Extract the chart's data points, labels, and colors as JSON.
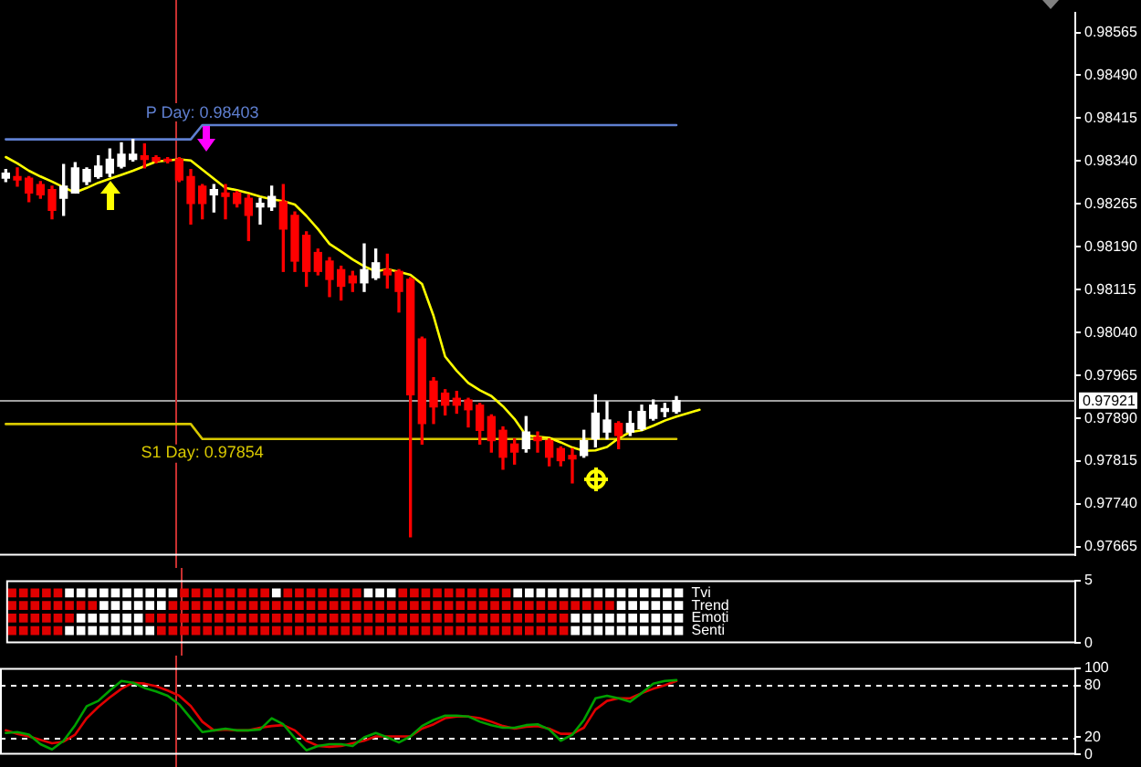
{
  "chart_data": [
    {
      "type": "candlestick",
      "categories": [
        null,
        null,
        null,
        null,
        null,
        null,
        null,
        null,
        null,
        null,
        null,
        null,
        null,
        null,
        null,
        null,
        null,
        null,
        null,
        null,
        null,
        null,
        null,
        null,
        null,
        null,
        null,
        null,
        null,
        null,
        null,
        null,
        null,
        null,
        null,
        null,
        null,
        null,
        null,
        null,
        null,
        null,
        null,
        null,
        null,
        null,
        null,
        null,
        null,
        null,
        null,
        null,
        null,
        null,
        null,
        null,
        null,
        null,
        null,
        null,
        null,
        null,
        null,
        null,
        null,
        null,
        null,
        null,
        null,
        null,
        null,
        null,
        null,
        null,
        null,
        null,
        null,
        null,
        null,
        null,
        null,
        null,
        null,
        null,
        null,
        null,
        null,
        null,
        null,
        null,
        null,
        null,
        null
      ],
      "ohlc": [
        [
          0.9831,
          0.98325,
          0.98304,
          0.98319
        ],
        [
          0.98313,
          0.98328,
          0.98296,
          0.98307
        ],
        [
          0.9831,
          0.98313,
          0.98269,
          0.98284
        ],
        [
          0.98299,
          0.98304,
          0.98275,
          0.98281
        ],
        [
          0.9829,
          0.98296,
          0.98239,
          0.98254
        ],
        [
          0.98275,
          0.98334,
          0.98245,
          0.98296
        ],
        [
          0.98284,
          0.98337,
          0.98284,
          0.98328
        ],
        [
          0.98304,
          0.98328,
          0.98299,
          0.98325
        ],
        [
          0.98313,
          0.98349,
          0.9831,
          0.98331
        ],
        [
          0.98319,
          0.98361,
          0.98313,
          0.98343
        ],
        [
          0.98331,
          0.98372,
          0.98328,
          0.98352
        ],
        [
          0.98343,
          0.98378,
          0.9834,
          0.98352
        ],
        [
          0.98349,
          0.9837,
          0.98328,
          0.98343
        ],
        [
          0.98346,
          0.98349,
          0.98337,
          0.9834
        ],
        [
          0.98343,
          0.98346,
          0.98337,
          0.9834
        ],
        [
          0.98343,
          0.98346,
          0.98304,
          0.98307
        ],
        [
          0.98313,
          0.98325,
          0.9823,
          0.98266
        ],
        [
          0.98296,
          0.98299,
          0.98239,
          0.98266
        ],
        [
          0.98281,
          0.98299,
          0.98251,
          0.9829
        ],
        [
          0.98284,
          0.98299,
          0.98239,
          0.98278
        ],
        [
          0.98284,
          0.98287,
          0.9826,
          0.98266
        ],
        [
          0.98275,
          0.98281,
          0.98201,
          0.98245
        ],
        [
          0.9826,
          0.98275,
          0.9823,
          0.98266
        ],
        [
          0.9826,
          0.98296,
          0.98254,
          0.98278
        ],
        [
          0.98269,
          0.98299,
          0.98147,
          0.98221
        ],
        [
          0.98245,
          0.98251,
          0.98147,
          0.98165
        ],
        [
          0.9821,
          0.98216,
          0.98121,
          0.98147
        ],
        [
          0.9818,
          0.98186,
          0.98141,
          0.98147
        ],
        [
          0.98165,
          0.98171,
          0.98103,
          0.98133
        ],
        [
          0.9815,
          0.98156,
          0.98097,
          0.98121
        ],
        [
          0.98139,
          0.98147,
          0.98112,
          0.98127
        ],
        [
          0.98127,
          0.98195,
          0.98112,
          0.9815
        ],
        [
          0.98136,
          0.98186,
          0.98133,
          0.98162
        ],
        [
          0.9815,
          0.98177,
          0.98118,
          0.98141
        ],
        [
          0.98147,
          0.9815,
          0.98076,
          0.98112
        ],
        [
          0.98133,
          0.98136,
          0.97683,
          0.97931
        ],
        [
          0.98029,
          0.98032,
          0.97845,
          0.97881
        ],
        [
          0.97955,
          0.97961,
          0.97881,
          0.9791
        ],
        [
          0.97934,
          0.9794,
          0.97896,
          0.97913
        ],
        [
          0.97925,
          0.97937,
          0.97899,
          0.97913
        ],
        [
          0.97922,
          0.97925,
          0.97875,
          0.97905
        ],
        [
          0.97913,
          0.97916,
          0.97845,
          0.97869
        ],
        [
          0.97893,
          0.97896,
          0.97831,
          0.97851
        ],
        [
          0.97869,
          0.97875,
          0.97801,
          0.97822
        ],
        [
          0.97845,
          0.97854,
          0.9781,
          0.97831
        ],
        [
          0.97837,
          0.97893,
          0.97831,
          0.97866
        ],
        [
          0.97857,
          0.97866,
          0.97831,
          0.97851
        ],
        [
          0.97851,
          0.97854,
          0.97807,
          0.97822
        ],
        [
          0.97837,
          0.9784,
          0.97807,
          0.97816
        ],
        [
          0.97825,
          0.97837,
          0.97777,
          0.97819
        ],
        [
          0.97825,
          0.97869,
          0.97822,
          0.97851
        ],
        [
          0.97854,
          0.97931,
          0.9784,
          0.97899
        ],
        [
          0.97866,
          0.97919,
          0.97854,
          0.97887
        ],
        [
          0.97881,
          0.97884,
          0.97837,
          0.9786
        ],
        [
          0.97866,
          0.97902,
          0.9786,
          0.97881
        ],
        [
          0.97872,
          0.97913,
          0.97869,
          0.97902
        ],
        [
          0.9789,
          0.97922,
          0.97887,
          0.97913
        ],
        [
          0.97902,
          0.97916,
          0.97893,
          0.97907
        ],
        [
          0.97902,
          0.97928,
          0.97899,
          0.97921
        ],
        null,
        null,
        null,
        null,
        null,
        null,
        null,
        null,
        null,
        null,
        null,
        null,
        null,
        null,
        null,
        null,
        null,
        null,
        null,
        null,
        null,
        null,
        null,
        null,
        null,
        null,
        null,
        null,
        null,
        null,
        null,
        null,
        null,
        null
      ],
      "colors": [
        "#ffffff",
        "#ff0000",
        "#ff0000",
        "#ff0000",
        "#ff0000",
        "#ffffff",
        "#ffffff",
        "#ffffff",
        "#ffffff",
        "#ffffff",
        "#ffffff",
        "#ffffff",
        "#ff0000",
        "#ff0000",
        "#ff0000",
        "#ff0000",
        "#ff0000",
        "#ff0000",
        "#ffffff",
        "#ff0000",
        "#ff0000",
        "#ff0000",
        "#ffffff",
        "#ffffff",
        "#ff0000",
        "#ff0000",
        "#ff0000",
        "#ff0000",
        "#ff0000",
        "#ff0000",
        "#ff0000",
        "#ffffff",
        "#ffffff",
        "#ff0000",
        "#ff0000",
        "#ff0000",
        "#ff0000",
        "#ff0000",
        "#ff0000",
        "#ff0000",
        "#ff0000",
        "#ff0000",
        "#ff0000",
        "#ff0000",
        "#ff0000",
        "#ffffff",
        "#ff0000",
        "#ff0000",
        "#ff0000",
        "#ff0000",
        "#ffffff",
        "#ffffff",
        "#ffffff",
        "#ff0000",
        "#ffffff",
        "#ffffff",
        "#ffffff",
        "#ffffff",
        "#ffffff",
        null,
        null,
        null,
        null,
        null,
        null,
        null,
        null,
        null,
        null,
        null,
        null,
        null,
        null,
        null,
        null,
        null,
        null,
        null,
        null,
        null,
        null,
        null,
        null,
        null,
        null,
        null,
        null,
        null,
        null,
        null,
        null,
        null,
        null
      ],
      "series": [
        {
          "type": "line",
          "color": "#ffff00",
          "values": [
            0.98347,
            0.98336,
            0.98323,
            0.98313,
            0.98304,
            0.98294,
            0.98285,
            0.98293,
            0.98302,
            0.98309,
            0.98316,
            0.98323,
            0.98331,
            0.98339,
            0.98341,
            0.98343,
            0.98341,
            0.98325,
            0.98309,
            0.98293,
            0.98289,
            0.98284,
            0.98278,
            0.98273,
            0.9827,
            0.98264,
            0.98244,
            0.98221,
            0.98195,
            0.98182,
            0.98168,
            0.98156,
            0.98147,
            0.98151,
            0.98146,
            0.98141,
            0.98125,
            0.98069,
            0.97998,
            0.97973,
            0.97952,
            0.97939,
            0.97929,
            0.97911,
            0.97889,
            0.9786,
            0.97858,
            0.97856,
            0.97848,
            0.97839,
            0.97833,
            0.97834,
            0.9784,
            0.97855,
            0.97866,
            0.97869,
            0.97877,
            0.97886,
            0.97893,
            0.97899,
            0.97905,
            null,
            null,
            null,
            null,
            null,
            null,
            null,
            null,
            null,
            null,
            null,
            null,
            null,
            null,
            null,
            null,
            null,
            null,
            null,
            null,
            null,
            null,
            null,
            null,
            null,
            null,
            null,
            null,
            null,
            null,
            null,
            null
          ]
        },
        {
          "type": "line",
          "name": "P Day: 0.98403",
          "color": "#5f7fd0",
          "values": [
            0.98378,
            0.98378,
            0.98378,
            0.98378,
            0.98378,
            0.98378,
            0.98378,
            0.98378,
            0.98378,
            0.98378,
            0.98378,
            0.98378,
            0.98378,
            0.98378,
            0.98378,
            0.98378,
            0.98378,
            0.98403,
            0.98403,
            0.98403,
            0.98403,
            0.98403,
            0.98403,
            0.98403,
            0.98403,
            0.98403,
            0.98403,
            0.98403,
            0.98403,
            0.98403,
            0.98403,
            0.98403,
            0.98403,
            0.98403,
            0.98403,
            0.98403,
            0.98403,
            0.98403,
            0.98403,
            0.98403,
            0.98403,
            0.98403,
            0.98403,
            0.98403,
            0.98403,
            0.98403,
            0.98403,
            0.98403,
            0.98403,
            0.98403,
            0.98403,
            0.98403,
            0.98403,
            0.98403,
            0.98403,
            0.98403,
            0.98403,
            0.98403,
            0.98403,
            null,
            null,
            null,
            null,
            null,
            null,
            null,
            null,
            null,
            null,
            null,
            null,
            null,
            null,
            null,
            null,
            null,
            null,
            null,
            null,
            null,
            null,
            null,
            null,
            null,
            null,
            null,
            null,
            null,
            null,
            null,
            null,
            null,
            null
          ]
        },
        {
          "type": "line",
          "name": "S1 Day: 0.97854",
          "color": "#d8c800",
          "values": [
            0.9788,
            0.9788,
            0.9788,
            0.9788,
            0.9788,
            0.9788,
            0.9788,
            0.9788,
            0.9788,
            0.9788,
            0.9788,
            0.9788,
            0.9788,
            0.9788,
            0.9788,
            0.9788,
            0.9788,
            0.97854,
            0.97854,
            0.97854,
            0.97854,
            0.97854,
            0.97854,
            0.97854,
            0.97854,
            0.97854,
            0.97854,
            0.97854,
            0.97854,
            0.97854,
            0.97854,
            0.97854,
            0.97854,
            0.97854,
            0.97854,
            0.97854,
            0.97854,
            0.97854,
            0.97854,
            0.97854,
            0.97854,
            0.97854,
            0.97854,
            0.97854,
            0.97854,
            0.97854,
            0.97854,
            0.97854,
            0.97854,
            0.97854,
            0.97854,
            0.97854,
            0.97854,
            0.97854,
            0.97854,
            0.97854,
            0.97854,
            0.97854,
            0.97854,
            null,
            null,
            null,
            null,
            null,
            null,
            null,
            null,
            null,
            null,
            null,
            null,
            null,
            null,
            null,
            null,
            null,
            null,
            null,
            null,
            null,
            null,
            null,
            null,
            null,
            null,
            null,
            null,
            null,
            null,
            null,
            null,
            null,
            null
          ]
        }
      ],
      "ylim": [
        0.9765,
        0.986
      ],
      "yticks": [
        {
          "value": 0.97665,
          "label": "0.97665"
        },
        {
          "value": 0.9774,
          "label": "0.97740"
        },
        {
          "value": 0.97815,
          "label": "0.97815"
        },
        {
          "value": 0.9789,
          "label": "0.97890"
        },
        {
          "value": 0.97965,
          "label": "0.97965"
        },
        {
          "value": 0.9804,
          "label": "0.98040"
        },
        {
          "value": 0.98115,
          "label": "0.98115"
        },
        {
          "value": 0.9819,
          "label": "0.98190"
        },
        {
          "value": 0.98265,
          "label": "0.98265"
        },
        {
          "value": 0.9834,
          "label": "0.98340"
        },
        {
          "value": 0.98415,
          "label": "0.98415"
        },
        {
          "value": 0.9849,
          "label": "0.98490"
        },
        {
          "value": 0.98565,
          "label": "0.98565"
        }
      ],
      "ref_lines": [
        {
          "axis": "y",
          "value": 0.97921,
          "label": "0.97921",
          "color": "#a0a0a0"
        }
      ],
      "grid": false,
      "legend": false,
      "tick_labels": "y",
      "marker": "none"
    },
    {
      "type": "scatter",
      "categories": [
        null,
        null,
        null,
        null,
        null,
        null,
        null,
        null,
        null,
        null,
        null,
        null,
        null,
        null,
        null,
        null,
        null,
        null,
        null,
        null,
        null,
        null,
        null,
        null,
        null,
        null,
        null,
        null,
        null,
        null,
        null,
        null,
        null,
        null,
        null,
        null,
        null,
        null,
        null,
        null,
        null,
        null,
        null,
        null,
        null,
        null,
        null,
        null,
        null,
        null,
        null,
        null,
        null,
        null,
        null,
        null,
        null,
        null,
        null,
        null,
        null,
        null,
        null,
        null,
        null,
        null,
        null,
        null,
        null,
        null,
        null,
        null,
        null,
        null,
        null,
        null,
        null,
        null,
        null,
        null,
        null,
        null,
        null,
        null,
        null,
        null,
        null,
        null,
        null,
        null,
        null,
        null,
        null
      ],
      "series": [
        {
          "name": "Tvi",
          "values": [
            4,
            4,
            4,
            4,
            4,
            4,
            4,
            4,
            4,
            4,
            4,
            4,
            4,
            4,
            4,
            4,
            4,
            4,
            4,
            4,
            4,
            4,
            4,
            4,
            4,
            4,
            4,
            4,
            4,
            4,
            4,
            4,
            4,
            4,
            4,
            4,
            4,
            4,
            4,
            4,
            4,
            4,
            4,
            4,
            4,
            4,
            4,
            4,
            4,
            4,
            4,
            4,
            4,
            4,
            4,
            4,
            4,
            4,
            4,
            null,
            null,
            null,
            null,
            null,
            null,
            null,
            null,
            null,
            null,
            null,
            null,
            null,
            null,
            null,
            null,
            null,
            null,
            null,
            null,
            null,
            null,
            null,
            null,
            null,
            null,
            null,
            null,
            null,
            null,
            null,
            null,
            null,
            null
          ],
          "colors": [
            "#e00000",
            "#e00000",
            "#e00000",
            "#e00000",
            "#e00000",
            "#ffffff",
            "#ffffff",
            "#ffffff",
            "#ffffff",
            "#ffffff",
            "#ffffff",
            "#ffffff",
            "#ffffff",
            "#ffffff",
            "#ffffff",
            "#e00000",
            "#e00000",
            "#e00000",
            "#e00000",
            "#e00000",
            "#e00000",
            "#e00000",
            "#e00000",
            "#ffffff",
            "#e00000",
            "#e00000",
            "#e00000",
            "#e00000",
            "#e00000",
            "#e00000",
            "#e00000",
            "#ffffff",
            "#ffffff",
            "#ffffff",
            "#e00000",
            "#e00000",
            "#e00000",
            "#e00000",
            "#e00000",
            "#e00000",
            "#e00000",
            "#e00000",
            "#e00000",
            "#e00000",
            "#ffffff",
            "#ffffff",
            "#ffffff",
            "#ffffff",
            "#ffffff",
            "#ffffff",
            "#ffffff",
            "#ffffff",
            "#ffffff",
            "#ffffff",
            "#ffffff",
            "#ffffff",
            "#ffffff",
            "#ffffff",
            "#ffffff",
            null,
            null,
            null,
            null,
            null,
            null,
            null,
            null,
            null,
            null,
            null,
            null,
            null,
            null,
            null,
            null,
            null,
            null,
            null,
            null,
            null,
            null,
            null,
            null,
            null,
            null,
            null,
            null,
            null,
            null,
            null,
            null,
            null,
            null
          ]
        },
        {
          "name": "Trend",
          "values": [
            3,
            3,
            3,
            3,
            3,
            3,
            3,
            3,
            3,
            3,
            3,
            3,
            3,
            3,
            3,
            3,
            3,
            3,
            3,
            3,
            3,
            3,
            3,
            3,
            3,
            3,
            3,
            3,
            3,
            3,
            3,
            3,
            3,
            3,
            3,
            3,
            3,
            3,
            3,
            3,
            3,
            3,
            3,
            3,
            3,
            3,
            3,
            3,
            3,
            3,
            3,
            3,
            3,
            3,
            3,
            3,
            3,
            3,
            3,
            null,
            null,
            null,
            null,
            null,
            null,
            null,
            null,
            null,
            null,
            null,
            null,
            null,
            null,
            null,
            null,
            null,
            null,
            null,
            null,
            null,
            null,
            null,
            null,
            null,
            null,
            null,
            null,
            null,
            null,
            null,
            null,
            null,
            null
          ],
          "colors": [
            "#e00000",
            "#e00000",
            "#e00000",
            "#e00000",
            "#e00000",
            "#e00000",
            "#e00000",
            "#e00000",
            "#ffffff",
            "#ffffff",
            "#ffffff",
            "#ffffff",
            "#ffffff",
            "#ffffff",
            "#e00000",
            "#e00000",
            "#e00000",
            "#e00000",
            "#e00000",
            "#e00000",
            "#e00000",
            "#e00000",
            "#e00000",
            "#e00000",
            "#e00000",
            "#e00000",
            "#e00000",
            "#e00000",
            "#e00000",
            "#e00000",
            "#e00000",
            "#e00000",
            "#e00000",
            "#e00000",
            "#e00000",
            "#e00000",
            "#e00000",
            "#e00000",
            "#e00000",
            "#e00000",
            "#e00000",
            "#e00000",
            "#e00000",
            "#e00000",
            "#e00000",
            "#e00000",
            "#e00000",
            "#e00000",
            "#e00000",
            "#e00000",
            "#e00000",
            "#e00000",
            "#e00000",
            "#ffffff",
            "#ffffff",
            "#ffffff",
            "#ffffff",
            "#ffffff",
            "#ffffff",
            null,
            null,
            null,
            null,
            null,
            null,
            null,
            null,
            null,
            null,
            null,
            null,
            null,
            null,
            null,
            null,
            null,
            null,
            null,
            null,
            null,
            null,
            null,
            null,
            null,
            null,
            null,
            null,
            null,
            null,
            null,
            null,
            null,
            null
          ]
        },
        {
          "name": "Emoti",
          "values": [
            2,
            2,
            2,
            2,
            2,
            2,
            2,
            2,
            2,
            2,
            2,
            2,
            2,
            2,
            2,
            2,
            2,
            2,
            2,
            2,
            2,
            2,
            2,
            2,
            2,
            2,
            2,
            2,
            2,
            2,
            2,
            2,
            2,
            2,
            2,
            2,
            2,
            2,
            2,
            2,
            2,
            2,
            2,
            2,
            2,
            2,
            2,
            2,
            2,
            2,
            2,
            2,
            2,
            2,
            2,
            2,
            2,
            2,
            2,
            null,
            null,
            null,
            null,
            null,
            null,
            null,
            null,
            null,
            null,
            null,
            null,
            null,
            null,
            null,
            null,
            null,
            null,
            null,
            null,
            null,
            null,
            null,
            null,
            null,
            null,
            null,
            null,
            null,
            null,
            null,
            null,
            null,
            null
          ],
          "colors": [
            "#e00000",
            "#e00000",
            "#e00000",
            "#e00000",
            "#e00000",
            "#e00000",
            "#ffffff",
            "#ffffff",
            "#ffffff",
            "#ffffff",
            "#ffffff",
            "#ffffff",
            "#e00000",
            "#e00000",
            "#e00000",
            "#e00000",
            "#e00000",
            "#e00000",
            "#e00000",
            "#e00000",
            "#e00000",
            "#e00000",
            "#e00000",
            "#e00000",
            "#e00000",
            "#e00000",
            "#e00000",
            "#e00000",
            "#e00000",
            "#e00000",
            "#e00000",
            "#e00000",
            "#e00000",
            "#e00000",
            "#e00000",
            "#e00000",
            "#e00000",
            "#e00000",
            "#e00000",
            "#e00000",
            "#e00000",
            "#e00000",
            "#e00000",
            "#e00000",
            "#e00000",
            "#e00000",
            "#e00000",
            "#e00000",
            "#e00000",
            "#ffffff",
            "#ffffff",
            "#ffffff",
            "#ffffff",
            "#ffffff",
            "#ffffff",
            "#ffffff",
            "#ffffff",
            "#ffffff",
            "#ffffff",
            null,
            null,
            null,
            null,
            null,
            null,
            null,
            null,
            null,
            null,
            null,
            null,
            null,
            null,
            null,
            null,
            null,
            null,
            null,
            null,
            null,
            null,
            null,
            null,
            null,
            null,
            null,
            null,
            null,
            null,
            null,
            null,
            null,
            null
          ]
        },
        {
          "name": "Senti",
          "values": [
            1,
            1,
            1,
            1,
            1,
            1,
            1,
            1,
            1,
            1,
            1,
            1,
            1,
            1,
            1,
            1,
            1,
            1,
            1,
            1,
            1,
            1,
            1,
            1,
            1,
            1,
            1,
            1,
            1,
            1,
            1,
            1,
            1,
            1,
            1,
            1,
            1,
            1,
            1,
            1,
            1,
            1,
            1,
            1,
            1,
            1,
            1,
            1,
            1,
            1,
            1,
            1,
            1,
            1,
            1,
            1,
            1,
            1,
            1,
            null,
            null,
            null,
            null,
            null,
            null,
            null,
            null,
            null,
            null,
            null,
            null,
            null,
            null,
            null,
            null,
            null,
            null,
            null,
            null,
            null,
            null,
            null,
            null,
            null,
            null,
            null,
            null,
            null,
            null,
            null,
            null,
            null,
            null
          ],
          "colors": [
            "#e00000",
            "#e00000",
            "#e00000",
            "#e00000",
            "#e00000",
            "#ffffff",
            "#ffffff",
            "#ffffff",
            "#ffffff",
            "#ffffff",
            "#ffffff",
            "#ffffff",
            "#ffffff",
            "#e00000",
            "#e00000",
            "#e00000",
            "#e00000",
            "#e00000",
            "#e00000",
            "#e00000",
            "#e00000",
            "#e00000",
            "#e00000",
            "#e00000",
            "#e00000",
            "#e00000",
            "#e00000",
            "#e00000",
            "#e00000",
            "#e00000",
            "#e00000",
            "#e00000",
            "#e00000",
            "#e00000",
            "#e00000",
            "#e00000",
            "#e00000",
            "#e00000",
            "#e00000",
            "#e00000",
            "#e00000",
            "#e00000",
            "#e00000",
            "#e00000",
            "#e00000",
            "#e00000",
            "#e00000",
            "#e00000",
            "#e00000",
            "#ffffff",
            "#ffffff",
            "#ffffff",
            "#ffffff",
            "#ffffff",
            "#ffffff",
            "#ffffff",
            "#ffffff",
            "#ffffff",
            "#ffffff",
            null,
            null,
            null,
            null,
            null,
            null,
            null,
            null,
            null,
            null,
            null,
            null,
            null,
            null,
            null,
            null,
            null,
            null,
            null,
            null,
            null,
            null,
            null,
            null,
            null,
            null,
            null,
            null,
            null,
            null,
            null,
            null,
            null,
            null
          ]
        }
      ],
      "ylim": [
        0,
        5
      ],
      "yticks": [
        0,
        5
      ],
      "marker": "square",
      "grid": false,
      "legend": false,
      "tick_labels": "y"
    },
    {
      "type": "line",
      "categories": [
        null,
        null,
        null,
        null,
        null,
        null,
        null,
        null,
        null,
        null,
        null,
        null,
        null,
        null,
        null,
        null,
        null,
        null,
        null,
        null,
        null,
        null,
        null,
        null,
        null,
        null,
        null,
        null,
        null,
        null,
        null,
        null,
        null,
        null,
        null,
        null,
        null,
        null,
        null,
        null,
        null,
        null,
        null,
        null,
        null,
        null,
        null,
        null,
        null,
        null,
        null,
        null,
        null,
        null,
        null,
        null,
        null,
        null,
        null,
        null,
        null,
        null,
        null,
        null,
        null,
        null,
        null,
        null,
        null,
        null,
        null,
        null,
        null,
        null,
        null,
        null,
        null,
        null,
        null,
        null,
        null,
        null,
        null,
        null,
        null,
        null,
        null,
        null,
        null,
        null,
        null,
        null,
        null
      ],
      "series": [
        {
          "color": "#00a000",
          "values": [
            25,
            26,
            23,
            12,
            6,
            16,
            34,
            56,
            62,
            74,
            85,
            83,
            77,
            73,
            68,
            58,
            42,
            26,
            28,
            30,
            28,
            28,
            29,
            42,
            35,
            19,
            5,
            10,
            12,
            12,
            10,
            20,
            25,
            20,
            14,
            21,
            33,
            40,
            45,
            45,
            44,
            38,
            34,
            31,
            31,
            34,
            35,
            29,
            16,
            23,
            40,
            65,
            68,
            65,
            61,
            71,
            82,
            85,
            86,
            null,
            null,
            null,
            null,
            null,
            null,
            null,
            null,
            null,
            null,
            null,
            null,
            null,
            null,
            null,
            null,
            null,
            null,
            null,
            null,
            null,
            null,
            null,
            null,
            null,
            null,
            null,
            null,
            null,
            null,
            null,
            null,
            null,
            null
          ]
        },
        {
          "color": "#e00000",
          "values": [
            28,
            24,
            21,
            17,
            13,
            15,
            23,
            42,
            55,
            66,
            76,
            83,
            82,
            79,
            74,
            68,
            56,
            38,
            28,
            29,
            28,
            28,
            31,
            33,
            34,
            28,
            16,
            10,
            9,
            10,
            13,
            16,
            21,
            21,
            21,
            21,
            30,
            35,
            42,
            44,
            44,
            42,
            38,
            33,
            30,
            32,
            33,
            30,
            24,
            24,
            31,
            52,
            62,
            65,
            65,
            71,
            76,
            80,
            85,
            null,
            null,
            null,
            null,
            null,
            null,
            null,
            null,
            null,
            null,
            null,
            null,
            null,
            null,
            null,
            null,
            null,
            null,
            null,
            null,
            null,
            null,
            null,
            null,
            null,
            null,
            null,
            null,
            null,
            null,
            null,
            null,
            null,
            null
          ]
        }
      ],
      "ylim": [
        0,
        100
      ],
      "yticks": [
        0,
        20,
        80,
        100
      ],
      "ref_lines": [
        {
          "axis": "y",
          "value": 80,
          "color": "#ffffff",
          "line_style": "dashed"
        },
        {
          "axis": "y",
          "value": 20,
          "color": "#ffffff",
          "line_style": "dashed"
        }
      ],
      "grid": false,
      "legend": false,
      "tick_labels": "y",
      "marker": "none"
    }
  ]
}
